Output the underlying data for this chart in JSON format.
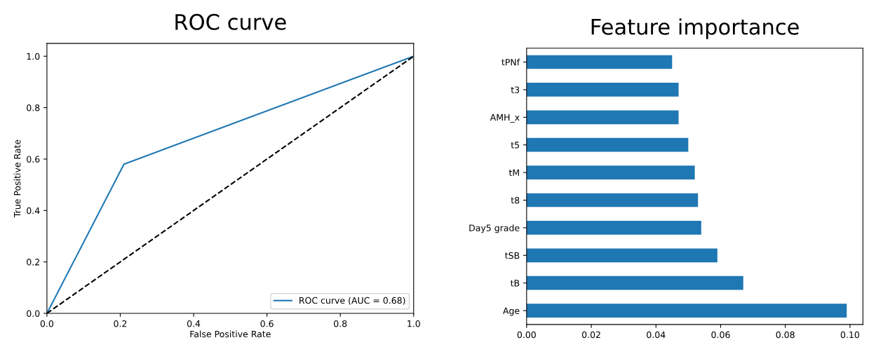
{
  "chart_data": [
    {
      "type": "line",
      "title": "ROC curve",
      "xlabel": "False Positive Rate",
      "ylabel": "True Positive Rate",
      "xlim": [
        0,
        1.0
      ],
      "ylim": [
        0,
        1.05
      ],
      "xticks": [
        {
          "value": 0,
          "label": "0.0"
        },
        0.2,
        0.4,
        0.6,
        0.8,
        {
          "value": 1,
          "label": "1.0"
        }
      ],
      "yticks": [
        {
          "value": 0,
          "label": "0.0"
        },
        0.2,
        0.4,
        0.6,
        0.8,
        {
          "value": 1,
          "label": "1.0"
        }
      ],
      "legend": "bottom right",
      "grid": false,
      "series": [
        {
          "name": "ROC curve (AUC = 0.68)",
          "color": "#1f77b4",
          "x": [
            0,
            0.21,
            1
          ],
          "values": [
            0,
            0.58,
            1
          ],
          "line_style": "solid"
        },
        {
          "color": "#000000",
          "x": [
            0,
            1
          ],
          "values": [
            0,
            1
          ],
          "line_style": "dashed"
        }
      ]
    },
    {
      "type": "bar",
      "orientation": "horizontal",
      "title": "Feature importance",
      "categories": [
        "tPNf",
        "t3",
        "AMH_x",
        "t5",
        "tM",
        "t8",
        "Day5 grade",
        "tSB",
        "tB",
        "Age"
      ],
      "values": [
        0.045,
        0.047,
        0.047,
        0.05,
        0.052,
        0.053,
        0.054,
        0.059,
        0.067,
        0.099
      ],
      "color": "#1f77b4",
      "xlim": [
        0,
        0.104
      ],
      "xticks": [
        {
          "value": 0,
          "label": "0.00"
        },
        0.02,
        0.04,
        0.06,
        0.08,
        {
          "value": 0.1,
          "label": "0.10"
        }
      ],
      "grid": false
    }
  ]
}
